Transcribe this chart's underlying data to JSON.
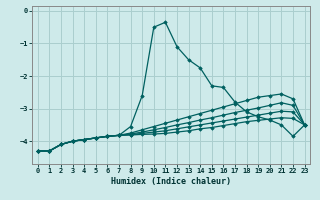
{
  "xlabel": "Humidex (Indice chaleur)",
  "ylabel": "",
  "bg_color": "#ceeaea",
  "grid_color": "#aacece",
  "line_color": "#006060",
  "xlim": [
    -0.5,
    23.5
  ],
  "ylim": [
    -4.7,
    0.15
  ],
  "yticks": [
    0,
    -1,
    -2,
    -3,
    -4
  ],
  "xticks": [
    0,
    1,
    2,
    3,
    4,
    5,
    6,
    7,
    8,
    9,
    10,
    11,
    12,
    13,
    14,
    15,
    16,
    17,
    18,
    19,
    20,
    21,
    22,
    23
  ],
  "series": [
    {
      "x": [
        0,
        1,
        2,
        3,
        4,
        5,
        6,
        7,
        8,
        9,
        10,
        11,
        12,
        13,
        14,
        15,
        16,
        17,
        18,
        19,
        20,
        21,
        22,
        23
      ],
      "y": [
        -4.3,
        -4.3,
        -4.1,
        -4.0,
        -3.95,
        -3.9,
        -3.85,
        -3.82,
        -3.55,
        -2.6,
        -0.5,
        -0.35,
        -1.1,
        -1.5,
        -1.75,
        -2.3,
        -2.35,
        -2.8,
        -3.1,
        -3.25,
        -3.35,
        -3.5,
        -3.85,
        -3.5
      ]
    },
    {
      "x": [
        0,
        1,
        2,
        3,
        4,
        5,
        6,
        7,
        8,
        9,
        10,
        11,
        12,
        13,
        14,
        15,
        16,
        17,
        18,
        19,
        20,
        21,
        22,
        23
      ],
      "y": [
        -4.3,
        -4.3,
        -4.1,
        -4.0,
        -3.95,
        -3.9,
        -3.85,
        -3.82,
        -3.75,
        -3.65,
        -3.55,
        -3.45,
        -3.35,
        -3.25,
        -3.15,
        -3.05,
        -2.95,
        -2.85,
        -2.75,
        -2.65,
        -2.6,
        -2.55,
        -2.7,
        -3.5
      ]
    },
    {
      "x": [
        0,
        1,
        2,
        3,
        4,
        5,
        6,
        7,
        8,
        9,
        10,
        11,
        12,
        13,
        14,
        15,
        16,
        17,
        18,
        19,
        20,
        21,
        22,
        23
      ],
      "y": [
        -4.3,
        -4.3,
        -4.1,
        -4.0,
        -3.95,
        -3.9,
        -3.85,
        -3.82,
        -3.78,
        -3.72,
        -3.65,
        -3.58,
        -3.5,
        -3.43,
        -3.35,
        -3.28,
        -3.2,
        -3.12,
        -3.05,
        -2.98,
        -2.9,
        -2.82,
        -2.9,
        -3.5
      ]
    },
    {
      "x": [
        0,
        1,
        2,
        3,
        4,
        5,
        6,
        7,
        8,
        9,
        10,
        11,
        12,
        13,
        14,
        15,
        16,
        17,
        18,
        19,
        20,
        21,
        22,
        23
      ],
      "y": [
        -4.3,
        -4.3,
        -4.1,
        -4.0,
        -3.95,
        -3.9,
        -3.85,
        -3.82,
        -3.8,
        -3.76,
        -3.72,
        -3.68,
        -3.62,
        -3.56,
        -3.5,
        -3.44,
        -3.38,
        -3.32,
        -3.26,
        -3.2,
        -3.14,
        -3.08,
        -3.1,
        -3.5
      ]
    },
    {
      "x": [
        0,
        1,
        2,
        3,
        4,
        5,
        6,
        7,
        8,
        9,
        10,
        11,
        12,
        13,
        14,
        15,
        16,
        17,
        18,
        19,
        20,
        21,
        22,
        23
      ],
      "y": [
        -4.3,
        -4.3,
        -4.1,
        -4.0,
        -3.95,
        -3.9,
        -3.85,
        -3.82,
        -3.81,
        -3.79,
        -3.78,
        -3.76,
        -3.72,
        -3.68,
        -3.62,
        -3.58,
        -3.52,
        -3.46,
        -3.4,
        -3.36,
        -3.32,
        -3.28,
        -3.3,
        -3.5
      ]
    }
  ]
}
